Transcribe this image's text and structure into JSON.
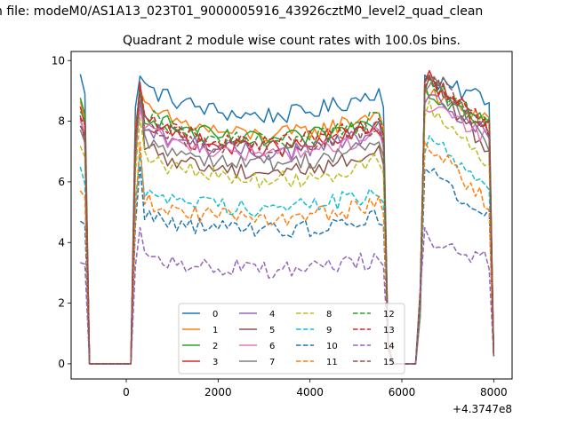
{
  "chart_data": {
    "type": "line",
    "suptitle": "n file: modeM0/AS1A13_023T01_9000005916_43926cztM0_level2_quad_clean",
    "title": "Quadrant 2 module wise count rates with 100.0s bins.",
    "xlabel": "",
    "ylabel": "",
    "x_offset_label": "+4.3747e8",
    "xlim": [
      -1200,
      8400
    ],
    "ylim": [
      -0.5,
      10.3
    ],
    "xticks": [
      0,
      2000,
      4000,
      6000,
      8000
    ],
    "xtick_labels": [
      "0",
      "2000",
      "4000",
      "6000",
      "8000"
    ],
    "yticks": [
      0,
      2,
      4,
      6,
      8,
      10
    ],
    "ytick_labels": [
      "0",
      "2",
      "4",
      "6",
      "8",
      "10"
    ],
    "grid": false,
    "legend_position": "lower center",
    "legend_ncol": 4,
    "series": [
      {
        "name": "0",
        "color": "#1f77b4",
        "dash": "solid",
        "base1": 8.9,
        "peak0": 9.5,
        "peak1": 9.5,
        "peak2": 9.3
      },
      {
        "name": "1",
        "color": "#ff7f0e",
        "dash": "solid",
        "base1": 8.2,
        "peak0": 8.6,
        "peak1": 9.0,
        "peak2": 8.9
      },
      {
        "name": "2",
        "color": "#2ca02c",
        "dash": "solid",
        "base1": 8.0,
        "peak0": 8.7,
        "peak1": 9.2,
        "peak2": 9.0
      },
      {
        "name": "3",
        "color": "#d62728",
        "dash": "solid",
        "base1": 7.7,
        "peak0": 8.4,
        "peak1": 9.3,
        "peak2": 9.5
      },
      {
        "name": "4",
        "color": "#9467bd",
        "dash": "solid",
        "base1": 7.6,
        "peak0": 8.0,
        "peak1": 8.6,
        "peak2": 8.8
      },
      {
        "name": "5",
        "color": "#8c564b",
        "dash": "solid",
        "base1": 6.9,
        "peak0": 8.1,
        "peak1": 9.3,
        "peak2": 9.7
      },
      {
        "name": "6",
        "color": "#e377c2",
        "dash": "solid",
        "base1": 7.5,
        "peak0": 7.9,
        "peak1": 8.4,
        "peak2": 8.5
      },
      {
        "name": "7",
        "color": "#7f7f7f",
        "dash": "solid",
        "base1": 7.2,
        "peak0": 7.6,
        "peak1": 9.0,
        "peak2": 9.6
      },
      {
        "name": "8",
        "color": "#bcbd22",
        "dash": "dashed",
        "base1": 6.6,
        "peak0": 7.3,
        "peak1": 8.2,
        "peak2": 8.6
      },
      {
        "name": "9",
        "color": "#17becf",
        "dash": "dashed",
        "base1": 5.6,
        "peak0": 6.6,
        "peak1": 7.0,
        "peak2": 7.6
      },
      {
        "name": "10",
        "color": "#1f77b4",
        "dash": "dashed",
        "base1": 4.8,
        "peak0": 4.8,
        "peak1": 6.5,
        "peak2": 6.5
      },
      {
        "name": "11",
        "color": "#ff7f0e",
        "dash": "dashed",
        "base1": 5.2,
        "peak0": 5.8,
        "peak1": 7.4,
        "peak2": 7.4
      },
      {
        "name": "12",
        "color": "#2ca02c",
        "dash": "dashed",
        "base1": 8.0,
        "peak0": 8.4,
        "peak1": 9.1,
        "peak2": 9.3
      },
      {
        "name": "13",
        "color": "#d62728",
        "dash": "dashed",
        "base1": 7.9,
        "peak0": 8.2,
        "peak1": 9.2,
        "peak2": 9.4
      },
      {
        "name": "14",
        "color": "#9467bd",
        "dash": "dashed",
        "base1": 3.4,
        "peak0": 3.4,
        "peak1": 4.4,
        "peak2": 4.2
      },
      {
        "name": "15",
        "color": "#8c564b",
        "dash": "dashed",
        "base1": 7.7,
        "peak0": 7.9,
        "peak1": 8.9,
        "peak2": 9.8
      }
    ]
  }
}
